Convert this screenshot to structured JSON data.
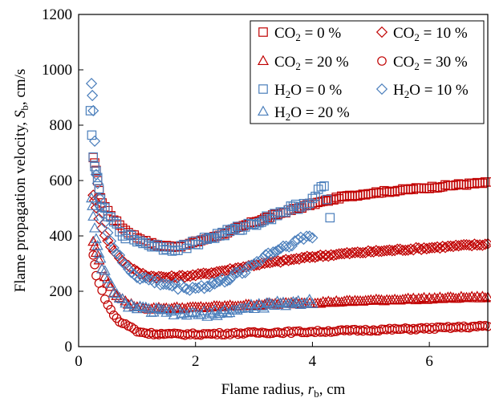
{
  "chart_data": {
    "type": "scatter",
    "title": "",
    "xlabel": "Flame radius, r_b, cm",
    "ylabel": "Flame propagation velocity, S_b, cm/s",
    "xlim": [
      0,
      7
    ],
    "ylim": [
      0,
      1200
    ],
    "xticks": [
      "0",
      "2",
      "4",
      "6"
    ],
    "yticks": [
      "0",
      "200",
      "400",
      "600",
      "800",
      "1000",
      "1200"
    ],
    "grid": false,
    "legend_position": "top-right",
    "colors": {
      "co2": "#c00000",
      "h2o": "#4a7ebb"
    },
    "series": [
      {
        "name": "CO2 = 0 %",
        "marker": "square",
        "color": "#c00000",
        "x": [
          0.25,
          0.3,
          0.35,
          0.4,
          0.5,
          0.6,
          0.7,
          0.8,
          1.0,
          1.2,
          1.4,
          1.6,
          1.8,
          2.0,
          2.5,
          3.0,
          3.5,
          4.0,
          4.5,
          5.0,
          5.5,
          6.0,
          6.5,
          7.0
        ],
        "y": [
          680,
          640,
          560,
          520,
          490,
          460,
          440,
          420,
          395,
          375,
          365,
          362,
          365,
          378,
          410,
          450,
          485,
          515,
          540,
          555,
          565,
          575,
          585,
          592
        ]
      },
      {
        "name": "CO2 = 10 %",
        "marker": "diamond",
        "color": "#c00000",
        "x": [
          0.25,
          0.3,
          0.4,
          0.5,
          0.6,
          0.8,
          1.0,
          1.2,
          1.5,
          2.0,
          2.5,
          3.0,
          3.5,
          4.0,
          4.5,
          5.0,
          5.5,
          6.0,
          6.5,
          7.0
        ],
        "y": [
          550,
          500,
          430,
          380,
          345,
          300,
          270,
          255,
          250,
          258,
          275,
          295,
          310,
          325,
          335,
          343,
          350,
          357,
          364,
          370
        ]
      },
      {
        "name": "CO2 = 20 %",
        "marker": "triangle",
        "color": "#c00000",
        "x": [
          0.25,
          0.3,
          0.4,
          0.5,
          0.6,
          0.8,
          1.0,
          1.2,
          1.5,
          2.0,
          2.5,
          3.0,
          3.5,
          4.0,
          4.5,
          5.0,
          5.5,
          6.0,
          6.5,
          7.0
        ],
        "y": [
          380,
          340,
          280,
          230,
          195,
          160,
          142,
          137,
          138,
          140,
          145,
          150,
          155,
          158,
          162,
          166,
          170,
          173,
          176,
          178
        ]
      },
      {
        "name": "CO2 = 30 %",
        "marker": "circle",
        "color": "#c00000",
        "x": [
          0.25,
          0.3,
          0.4,
          0.5,
          0.6,
          0.7,
          0.8,
          0.9,
          1.0,
          1.2,
          1.5,
          2.0,
          2.5,
          3.0,
          3.5,
          4.0,
          4.5,
          5.0,
          5.5,
          6.0,
          6.5,
          7.0
        ],
        "y": [
          330,
          260,
          200,
          150,
          115,
          90,
          80,
          70,
          55,
          48,
          45,
          45,
          47,
          50,
          52,
          54,
          57,
          60,
          63,
          66,
          70,
          74
        ]
      },
      {
        "name": "H2O = 0 %",
        "marker": "square",
        "color": "#4a7ebb",
        "x": [
          0.2,
          0.25,
          0.3,
          0.35,
          0.4,
          0.5,
          0.6,
          0.7,
          0.8,
          1.0,
          1.2,
          1.4,
          1.6,
          1.8,
          2.0,
          2.2,
          2.5,
          2.8,
          3.0,
          3.3,
          3.5,
          3.8,
          4.0,
          4.1,
          4.2,
          4.3
        ],
        "y": [
          845,
          680,
          640,
          560,
          510,
          470,
          450,
          420,
          400,
          385,
          370,
          360,
          355,
          360,
          375,
          390,
          410,
          430,
          445,
          470,
          490,
          510,
          530,
          560,
          580,
          470
        ]
      },
      {
        "name": "H2O = 10 %",
        "marker": "diamond",
        "color": "#4a7ebb",
        "x": [
          0.22,
          0.25,
          0.3,
          0.35,
          0.4,
          0.5,
          0.6,
          0.7,
          0.8,
          1.0,
          1.2,
          1.4,
          1.6,
          1.8,
          2.0,
          2.2,
          2.5,
          2.8,
          3.0,
          3.2,
          3.5,
          3.7,
          3.9,
          4.0
        ],
        "y": [
          960,
          855,
          620,
          540,
          490,
          410,
          360,
          320,
          290,
          255,
          240,
          230,
          220,
          215,
          212,
          220,
          240,
          270,
          300,
          330,
          360,
          380,
          395,
          400
        ]
      },
      {
        "name": "H2O = 20 %",
        "marker": "triangle",
        "color": "#4a7ebb",
        "x": [
          0.22,
          0.25,
          0.3,
          0.35,
          0.4,
          0.5,
          0.6,
          0.7,
          0.8,
          1.0,
          1.2,
          1.5,
          1.8,
          2.0,
          2.2,
          2.5,
          2.8,
          3.0,
          3.3,
          3.5,
          3.8,
          4.0
        ],
        "y": [
          540,
          480,
          380,
          330,
          290,
          240,
          200,
          170,
          155,
          140,
          130,
          125,
          120,
          115,
          118,
          125,
          135,
          145,
          150,
          155,
          160,
          165
        ]
      }
    ],
    "legend": {
      "entries": [
        {
          "series": 0,
          "prefix": "CO",
          "sub": "2",
          "suffix": " = 0 %"
        },
        {
          "series": 1,
          "prefix": "CO",
          "sub": "2",
          "suffix": " = 10 %"
        },
        {
          "series": 2,
          "prefix": "CO",
          "sub": "2",
          "suffix": " = 20 %"
        },
        {
          "series": 3,
          "prefix": "CO",
          "sub": "2",
          "suffix": " = 30 %"
        },
        {
          "series": 4,
          "prefix": "H",
          "sub": "2",
          "suffix": "O = 0 %"
        },
        {
          "series": 5,
          "prefix": "H",
          "sub": "2",
          "suffix": "O = 10 %"
        },
        {
          "series": 6,
          "prefix": "H",
          "sub": "2",
          "suffix": "O = 20 %"
        }
      ]
    },
    "axis_text": {
      "x_prefix": "Flame radius, ",
      "x_var": "r",
      "x_sub": "b",
      "x_suffix": ", cm",
      "y_prefix": "Flame propagation velocity, ",
      "y_var": "S",
      "y_sub": "b",
      "y_suffix": ", cm/s"
    }
  }
}
